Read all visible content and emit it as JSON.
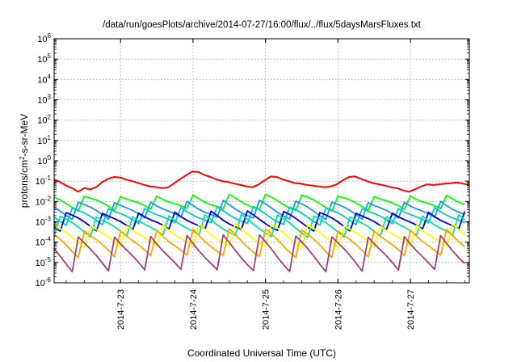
{
  "chart_data": {
    "type": "line",
    "title": "/data/run/goesPlots/archive/2014-07-27/16:00/flux/../flux/5daysMarsFluxes.txt",
    "xlabel": "Coordinated Universal Time (UTC)",
    "ylabel": "protons/cm²-s-sr-MeV",
    "ylabel_base": "protons/cm",
    "ylabel_sup": "2",
    "ylabel_rest": "-s-sr-MeV",
    "x_type": "time",
    "xlim": [
      "2014-07-22T02:00",
      "2014-07-27T19:30"
    ],
    "x_ticks": [
      "2014-07-23",
      "2014-07-24",
      "2014-07-25",
      "2014-07-26",
      "2014-07-27"
    ],
    "x_tick_labels": [
      "2014-7-23",
      "2014-7-24",
      "2014-7-25",
      "2014-7-26",
      "2014-7-27"
    ],
    "y_scale": "log",
    "ylim": [
      1e-06,
      1000000.0
    ],
    "y_ticks": [
      {
        "base": "10",
        "exp": "-6"
      },
      {
        "base": "10",
        "exp": "-5"
      },
      {
        "base": "10",
        "exp": "-4"
      },
      {
        "base": "10",
        "exp": "-3"
      },
      {
        "base": "10",
        "exp": "-2"
      },
      {
        "base": "10",
        "exp": "-1"
      },
      {
        "base": "10",
        "exp": "0"
      },
      {
        "base": "10",
        "exp": "1"
      },
      {
        "base": "10",
        "exp": "2"
      },
      {
        "base": "10",
        "exp": "3"
      },
      {
        "base": "10",
        "exp": "4"
      },
      {
        "base": "10",
        "exp": "5"
      },
      {
        "base": "10",
        "exp": "6"
      }
    ],
    "grid": true,
    "series": [
      {
        "color": "#ff0000",
        "values_approx": [
          0.12,
          0.09,
          0.06,
          0.045,
          0.03,
          0.045,
          0.04,
          0.05,
          0.09,
          0.13,
          0.16,
          0.15,
          0.12,
          0.1,
          0.08,
          0.065,
          0.055,
          0.05,
          0.045,
          0.05,
          0.08,
          0.13,
          0.2,
          0.3,
          0.28,
          0.2,
          0.16,
          0.12,
          0.1,
          0.09,
          0.075,
          0.065,
          0.055,
          0.05,
          0.07,
          0.11,
          0.17,
          0.16,
          0.12,
          0.1,
          0.08,
          0.075,
          0.065,
          0.06,
          0.055,
          0.05,
          0.055,
          0.07,
          0.11,
          0.16,
          0.17,
          0.13,
          0.1,
          0.08,
          0.07,
          0.06,
          0.05,
          0.045,
          0.035,
          0.03,
          0.04,
          0.055,
          0.07,
          0.065,
          0.07,
          0.075,
          0.08,
          0.085,
          0.075,
          0.065
        ]
      },
      {
        "color": "#00ff00",
        "values_approx": [
          0.02,
          0.004
        ]
      },
      {
        "color": "#1e90ff",
        "values_approx": [
          0.01,
          0.0015
        ]
      },
      {
        "color": "#00c8c8",
        "values_approx": [
          0.005,
          0.0008
        ]
      },
      {
        "color": "#0000cd",
        "values_approx": [
          0.003,
          0.0004
        ]
      },
      {
        "color": "#00e5a0",
        "values_approx": [
          0.002,
          0.0002
        ]
      },
      {
        "color": "#ffff00",
        "values_approx": [
          0.0007,
          6e-05
        ]
      },
      {
        "color": "#ffa500",
        "values_approx": [
          0.0004,
          2e-05
        ]
      },
      {
        "color": "#a0407a",
        "values_approx": [
          0.0002,
          4e-06
        ]
      }
    ]
  }
}
